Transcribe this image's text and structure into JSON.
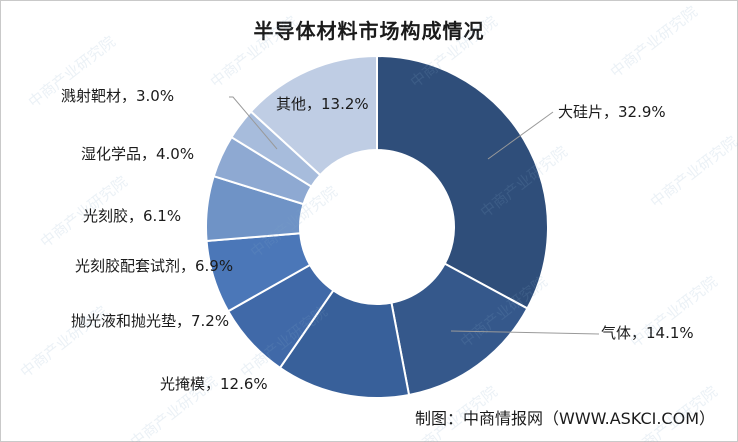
{
  "watermark": "中商产业研究院",
  "credit": "制图：中商情报网（WWW.ASKCI.COM）",
  "chart_data": {
    "type": "pie",
    "variant": "donut",
    "title": "半导体材料市场构成情况",
    "slices": [
      {
        "name": "大硅片",
        "value": 32.9,
        "label": "大硅片，32.9%",
        "color": "#2f4e7a"
      },
      {
        "name": "气体",
        "value": 14.1,
        "label": "气体，14.1%",
        "color": "#35588b"
      },
      {
        "name": "光掩模",
        "value": 12.6,
        "label": "光掩模，12.6%",
        "color": "#38609a"
      },
      {
        "name": "抛光液和抛光垫",
        "value": 7.2,
        "label": "抛光液和抛光垫，7.2%",
        "color": "#4069a8"
      },
      {
        "name": "光刻胶配套试剂",
        "value": 6.9,
        "label": "光刻胶配套试剂，6.9%",
        "color": "#4b77b8"
      },
      {
        "name": "光刻胶",
        "value": 6.1,
        "label": "光刻胶，6.1%",
        "color": "#6f93c6"
      },
      {
        "name": "湿化学品",
        "value": 4.0,
        "label": "湿化学品，4.0%",
        "color": "#8ea9d2"
      },
      {
        "name": "溅射靶材",
        "value": 3.0,
        "label": "溅射靶材，3.0%",
        "color": "#a7bcdc"
      },
      {
        "name": "其他",
        "value": 13.2,
        "label": "其他，13.2%",
        "color": "#bfcde4"
      }
    ]
  }
}
